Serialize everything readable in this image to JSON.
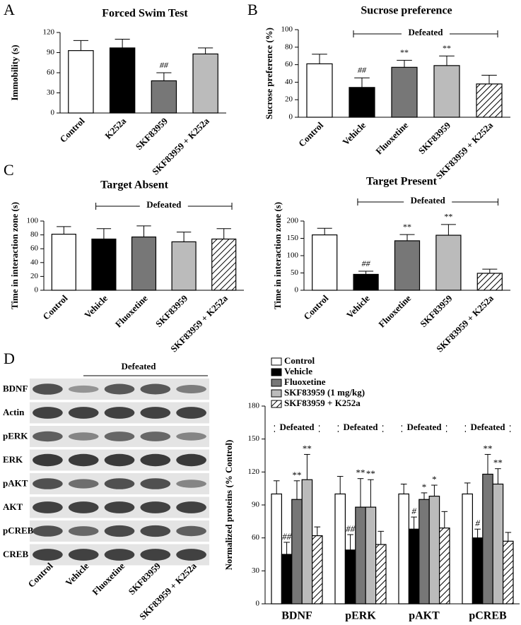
{
  "chart_data": [
    {
      "type": "bar",
      "panel": "A",
      "title": "Forced Swim Test",
      "ylabel": "Immobility (s)",
      "categories": [
        "Control",
        "K252a",
        "SKF83959",
        "SKF83959 + K252a"
      ],
      "values": [
        93,
        97,
        48,
        88
      ],
      "errors": [
        15,
        13,
        12,
        9
      ],
      "significance": [
        null,
        null,
        "##",
        null
      ],
      "colors": [
        "#ffffff",
        "#000000",
        "#777777",
        "#bbbbbb"
      ],
      "hatched": [
        false,
        false,
        false,
        false
      ],
      "ylim": [
        0,
        120
      ],
      "yticks": [
        0,
        30,
        60,
        90,
        120
      ]
    },
    {
      "type": "bar",
      "panel": "B",
      "title": "Sucrose preference",
      "ylabel": "Sucrose preference (%)",
      "bracket_label": "Defeated",
      "categories": [
        "Control",
        "Vehicle",
        "Fluoxetine",
        "SKF83959",
        "SKF83959 + K252a"
      ],
      "values": [
        61,
        34,
        57,
        59,
        38
      ],
      "errors": [
        11,
        11,
        8,
        11,
        10
      ],
      "significance": [
        null,
        "##",
        "**",
        "**",
        null
      ],
      "colors": [
        "#ffffff",
        "#000000",
        "#777777",
        "#bbbbbb",
        "#ffffff"
      ],
      "hatched": [
        false,
        false,
        false,
        false,
        true
      ],
      "ylim": [
        0,
        100
      ],
      "yticks": [
        0,
        20,
        40,
        60,
        80,
        100
      ]
    },
    {
      "type": "bar",
      "panel": "C",
      "title": "Target Absent",
      "ylabel": "Time in interaction zone (s)",
      "bracket_label": "Defeated",
      "categories": [
        "Control",
        "Vehicle",
        "Fluoxetine",
        "SKF83959",
        "SKF83959 + K252a"
      ],
      "values": [
        81,
        74,
        77,
        70,
        74
      ],
      "errors": [
        11,
        15,
        16,
        14,
        15
      ],
      "significance": [
        null,
        null,
        null,
        null,
        null
      ],
      "colors": [
        "#ffffff",
        "#000000",
        "#777777",
        "#bbbbbb",
        "#ffffff"
      ],
      "hatched": [
        false,
        false,
        false,
        false,
        true
      ],
      "ylim": [
        0,
        100
      ],
      "yticks": [
        0,
        20,
        40,
        60,
        80,
        100
      ]
    },
    {
      "type": "bar",
      "title": "Target Present",
      "ylabel": "Time in interaction zone (s)",
      "bracket_label": "Defeated",
      "categories": [
        "Control",
        "Vehicle",
        "Fluoxetine",
        "SKF83959",
        "SKF83959 + K252a"
      ],
      "values": [
        160,
        46,
        143,
        159,
        49
      ],
      "errors": [
        19,
        9,
        18,
        31,
        12
      ],
      "significance": [
        null,
        "##",
        "**",
        "**",
        null
      ],
      "colors": [
        "#ffffff",
        "#000000",
        "#777777",
        "#bbbbbb",
        "#ffffff"
      ],
      "hatched": [
        false,
        false,
        false,
        false,
        true
      ],
      "ylim": [
        0,
        200
      ],
      "yticks": [
        0,
        50,
        100,
        150,
        200
      ]
    },
    {
      "type": "grouped_bar",
      "ylabel": "Normalized proteins (% Control)",
      "bracket_label": "Defeated",
      "categories": [
        "BDNF",
        "pERK",
        "pAKT",
        "pCREB"
      ],
      "series": [
        {
          "name": "Control",
          "color": "#ffffff",
          "hatched": false,
          "values": [
            100,
            100,
            100,
            100
          ],
          "errors": [
            12,
            16,
            9,
            10
          ],
          "significance": [
            null,
            null,
            null,
            null
          ]
        },
        {
          "name": "Vehicle",
          "color": "#000000",
          "hatched": false,
          "values": [
            45,
            49,
            68,
            60
          ],
          "errors": [
            11,
            14,
            11,
            8
          ],
          "significance": [
            "##",
            "##",
            "#",
            "#"
          ]
        },
        {
          "name": "Fluoxetine",
          "color": "#777777",
          "hatched": false,
          "values": [
            95,
            88,
            95,
            118
          ],
          "errors": [
            17,
            26,
            6,
            18
          ],
          "significance": [
            "**",
            "**",
            "*",
            "**"
          ]
        },
        {
          "name": "SKF83959 (1 mg/kg)",
          "color": "#bbbbbb",
          "hatched": false,
          "values": [
            113,
            88,
            98,
            109
          ],
          "errors": [
            23,
            25,
            10,
            14
          ],
          "significance": [
            "**",
            "**",
            "*",
            "**"
          ]
        },
        {
          "name": "SKF83959 + K252a",
          "color": "#ffffff",
          "hatched": true,
          "values": [
            62,
            54,
            69,
            57
          ],
          "errors": [
            8,
            12,
            15,
            8
          ],
          "significance": [
            null,
            null,
            null,
            null
          ]
        }
      ],
      "ylim": [
        0,
        180
      ],
      "yticks": [
        0,
        30,
        60,
        90,
        120,
        150,
        180
      ]
    }
  ],
  "blot": {
    "panel": "D",
    "header": "Defeated",
    "rows": [
      "BDNF",
      "Actin",
      "pERK",
      "ERK",
      "pAKT",
      "AKT",
      "pCREB",
      "CREB"
    ],
    "lanes": [
      "Control",
      "Vehicle",
      "Fluoxetine",
      "SKF83959",
      "SKF83959 + K252a"
    ]
  }
}
